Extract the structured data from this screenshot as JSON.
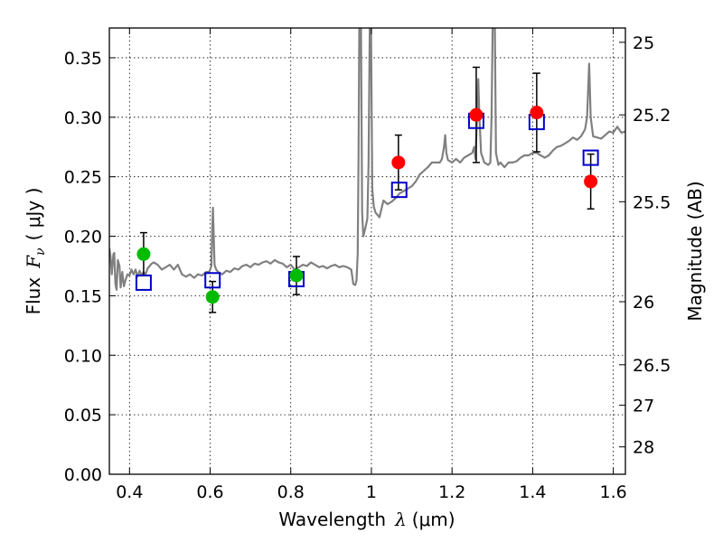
{
  "chart_data": {
    "type": "scatter",
    "xlabel": {
      "text": "Wavelength",
      "symbol": "λ",
      "unit": "(μm)"
    },
    "ylabel": {
      "text": "Flux",
      "symbol": "F",
      "subscript": "ν",
      "unit": "( μJy )"
    },
    "y2label": "Magnitude (AB)",
    "xlim": [
      0.35,
      1.63
    ],
    "ylim": [
      0.0,
      0.375
    ],
    "grid": true,
    "x_ticks": [
      "0.4",
      "0.6",
      "0.8",
      "1",
      "1.2",
      "1.4",
      "1.6"
    ],
    "x_tick_values": [
      0.4,
      0.6,
      0.8,
      1.0,
      1.2,
      1.4,
      1.6
    ],
    "y_ticks": [
      "0.00",
      "0.05",
      "0.10",
      "0.15",
      "0.20",
      "0.25",
      "0.30",
      "0.35"
    ],
    "y_tick_values": [
      0.0,
      0.05,
      0.1,
      0.15,
      0.2,
      0.25,
      0.3,
      0.35
    ],
    "y2_ticks": [
      {
        "label": "25",
        "flux": 0.363
      },
      {
        "label": "25.2",
        "flux": 0.302
      },
      {
        "label": "25.5",
        "flux": 0.229
      },
      {
        "label": "26",
        "flux": 0.145
      },
      {
        "label": "26.5",
        "flux": 0.092
      },
      {
        "label": "27",
        "flux": 0.058
      },
      {
        "label": "28",
        "flux": 0.023
      }
    ],
    "colors": {
      "spectrum": "#808080",
      "model": "#0000cc",
      "green": "#00bb00",
      "red": "#ff0000",
      "errorbar": "#000000"
    },
    "spectrum": [
      [
        0.35,
        0.19
      ],
      [
        0.353,
        0.183
      ],
      [
        0.356,
        0.168
      ],
      [
        0.36,
        0.185
      ],
      [
        0.362,
        0.186
      ],
      [
        0.365,
        0.16
      ],
      [
        0.368,
        0.155
      ],
      [
        0.371,
        0.18
      ],
      [
        0.375,
        0.175
      ],
      [
        0.378,
        0.157
      ],
      [
        0.382,
        0.17
      ],
      [
        0.386,
        0.158
      ],
      [
        0.39,
        0.163
      ],
      [
        0.395,
        0.168
      ],
      [
        0.4,
        0.167
      ],
      [
        0.405,
        0.172
      ],
      [
        0.41,
        0.168
      ],
      [
        0.415,
        0.172
      ],
      [
        0.42,
        0.166
      ],
      [
        0.425,
        0.171
      ],
      [
        0.43,
        0.167
      ],
      [
        0.435,
        0.17
      ],
      [
        0.44,
        0.168
      ],
      [
        0.445,
        0.173
      ],
      [
        0.45,
        0.175
      ],
      [
        0.455,
        0.177
      ],
      [
        0.46,
        0.178
      ],
      [
        0.47,
        0.176
      ],
      [
        0.48,
        0.172
      ],
      [
        0.49,
        0.174
      ],
      [
        0.5,
        0.176
      ],
      [
        0.51,
        0.172
      ],
      [
        0.52,
        0.176
      ],
      [
        0.53,
        0.168
      ],
      [
        0.54,
        0.166
      ],
      [
        0.55,
        0.168
      ],
      [
        0.56,
        0.165
      ],
      [
        0.57,
        0.168
      ],
      [
        0.58,
        0.167
      ],
      [
        0.59,
        0.17
      ],
      [
        0.598,
        0.17
      ],
      [
        0.6,
        0.172
      ],
      [
        0.603,
        0.175
      ],
      [
        0.605,
        0.205
      ],
      [
        0.607,
        0.224
      ],
      [
        0.609,
        0.2
      ],
      [
        0.611,
        0.176
      ],
      [
        0.615,
        0.172
      ],
      [
        0.62,
        0.17
      ],
      [
        0.63,
        0.168
      ],
      [
        0.64,
        0.171
      ],
      [
        0.65,
        0.17
      ],
      [
        0.66,
        0.173
      ],
      [
        0.67,
        0.172
      ],
      [
        0.68,
        0.175
      ],
      [
        0.69,
        0.176
      ],
      [
        0.7,
        0.174
      ],
      [
        0.71,
        0.177
      ],
      [
        0.72,
        0.176
      ],
      [
        0.73,
        0.178
      ],
      [
        0.74,
        0.179
      ],
      [
        0.75,
        0.177
      ],
      [
        0.76,
        0.18
      ],
      [
        0.77,
        0.178
      ],
      [
        0.78,
        0.177
      ],
      [
        0.79,
        0.174
      ],
      [
        0.8,
        0.176
      ],
      [
        0.81,
        0.172
      ],
      [
        0.82,
        0.174
      ],
      [
        0.83,
        0.176
      ],
      [
        0.84,
        0.175
      ],
      [
        0.85,
        0.178
      ],
      [
        0.86,
        0.176
      ],
      [
        0.87,
        0.174
      ],
      [
        0.88,
        0.175
      ],
      [
        0.89,
        0.173
      ],
      [
        0.9,
        0.175
      ],
      [
        0.91,
        0.176
      ],
      [
        0.92,
        0.174
      ],
      [
        0.93,
        0.175
      ],
      [
        0.94,
        0.174
      ],
      [
        0.95,
        0.172
      ],
      [
        0.955,
        0.16
      ],
      [
        0.96,
        0.159
      ],
      [
        0.963,
        0.163
      ],
      [
        0.966,
        0.185
      ],
      [
        0.968,
        0.265
      ],
      [
        0.97,
        0.38
      ],
      [
        0.974,
        0.38
      ],
      [
        0.977,
        0.22
      ],
      [
        0.98,
        0.2
      ],
      [
        0.985,
        0.207
      ],
      [
        0.99,
        0.215
      ],
      [
        0.993,
        0.26
      ],
      [
        0.996,
        0.38
      ],
      [
        0.999,
        0.38
      ],
      [
        1.002,
        0.24
      ],
      [
        1.006,
        0.225
      ],
      [
        1.01,
        0.22
      ],
      [
        1.02,
        0.216
      ],
      [
        1.03,
        0.23
      ],
      [
        1.04,
        0.227
      ],
      [
        1.05,
        0.229
      ],
      [
        1.06,
        0.232
      ],
      [
        1.07,
        0.236
      ],
      [
        1.08,
        0.238
      ],
      [
        1.09,
        0.24
      ],
      [
        1.1,
        0.242
      ],
      [
        1.11,
        0.246
      ],
      [
        1.12,
        0.252
      ],
      [
        1.13,
        0.255
      ],
      [
        1.14,
        0.258
      ],
      [
        1.15,
        0.262
      ],
      [
        1.16,
        0.262
      ],
      [
        1.17,
        0.262
      ],
      [
        1.175,
        0.265
      ],
      [
        1.18,
        0.275
      ],
      [
        1.183,
        0.285
      ],
      [
        1.186,
        0.27
      ],
      [
        1.19,
        0.264
      ],
      [
        1.2,
        0.262
      ],
      [
        1.21,
        0.265
      ],
      [
        1.22,
        0.262
      ],
      [
        1.23,
        0.266
      ],
      [
        1.24,
        0.268
      ],
      [
        1.25,
        0.27
      ],
      [
        1.255,
        0.275
      ],
      [
        1.258,
        0.265
      ],
      [
        1.262,
        0.3
      ],
      [
        1.265,
        0.332
      ],
      [
        1.268,
        0.3
      ],
      [
        1.272,
        0.27
      ],
      [
        1.28,
        0.262
      ],
      [
        1.29,
        0.26
      ],
      [
        1.295,
        0.262
      ],
      [
        1.298,
        0.3
      ],
      [
        1.301,
        0.38
      ],
      [
        1.306,
        0.38
      ],
      [
        1.309,
        0.27
      ],
      [
        1.315,
        0.26
      ],
      [
        1.32,
        0.262
      ],
      [
        1.33,
        0.258
      ],
      [
        1.34,
        0.262
      ],
      [
        1.35,
        0.262
      ],
      [
        1.36,
        0.263
      ],
      [
        1.37,
        0.266
      ],
      [
        1.38,
        0.268
      ],
      [
        1.39,
        0.268
      ],
      [
        1.4,
        0.27
      ],
      [
        1.41,
        0.27
      ],
      [
        1.42,
        0.268
      ],
      [
        1.43,
        0.266
      ],
      [
        1.44,
        0.268
      ],
      [
        1.45,
        0.272
      ],
      [
        1.46,
        0.275
      ],
      [
        1.47,
        0.276
      ],
      [
        1.48,
        0.278
      ],
      [
        1.49,
        0.28
      ],
      [
        1.5,
        0.283
      ],
      [
        1.51,
        0.281
      ],
      [
        1.52,
        0.284
      ],
      [
        1.53,
        0.29
      ],
      [
        1.535,
        0.3
      ],
      [
        1.54,
        0.345
      ],
      [
        1.544,
        0.3
      ],
      [
        1.55,
        0.284
      ],
      [
        1.56,
        0.283
      ],
      [
        1.57,
        0.282
      ],
      [
        1.58,
        0.285
      ],
      [
        1.59,
        0.288
      ],
      [
        1.6,
        0.287
      ],
      [
        1.61,
        0.292
      ],
      [
        1.62,
        0.287
      ],
      [
        1.63,
        0.288
      ]
    ],
    "model_points": [
      {
        "x": 0.435,
        "y": 0.161
      },
      {
        "x": 0.606,
        "y": 0.163
      },
      {
        "x": 0.814,
        "y": 0.164
      },
      {
        "x": 1.069,
        "y": 0.239
      },
      {
        "x": 1.26,
        "y": 0.297
      },
      {
        "x": 1.41,
        "y": 0.296
      },
      {
        "x": 1.544,
        "y": 0.266
      }
    ],
    "observed_green": [
      {
        "x": 0.435,
        "y": 0.185,
        "err": 0.018
      },
      {
        "x": 0.606,
        "y": 0.149,
        "err": 0.013
      },
      {
        "x": 0.814,
        "y": 0.167,
        "err": 0.016
      }
    ],
    "observed_red": [
      {
        "x": 1.067,
        "y": 0.262,
        "err": 0.023
      },
      {
        "x": 1.26,
        "y": 0.302,
        "err": 0.04
      },
      {
        "x": 1.41,
        "y": 0.304,
        "err": 0.033
      },
      {
        "x": 1.544,
        "y": 0.246,
        "err": 0.023
      }
    ]
  }
}
